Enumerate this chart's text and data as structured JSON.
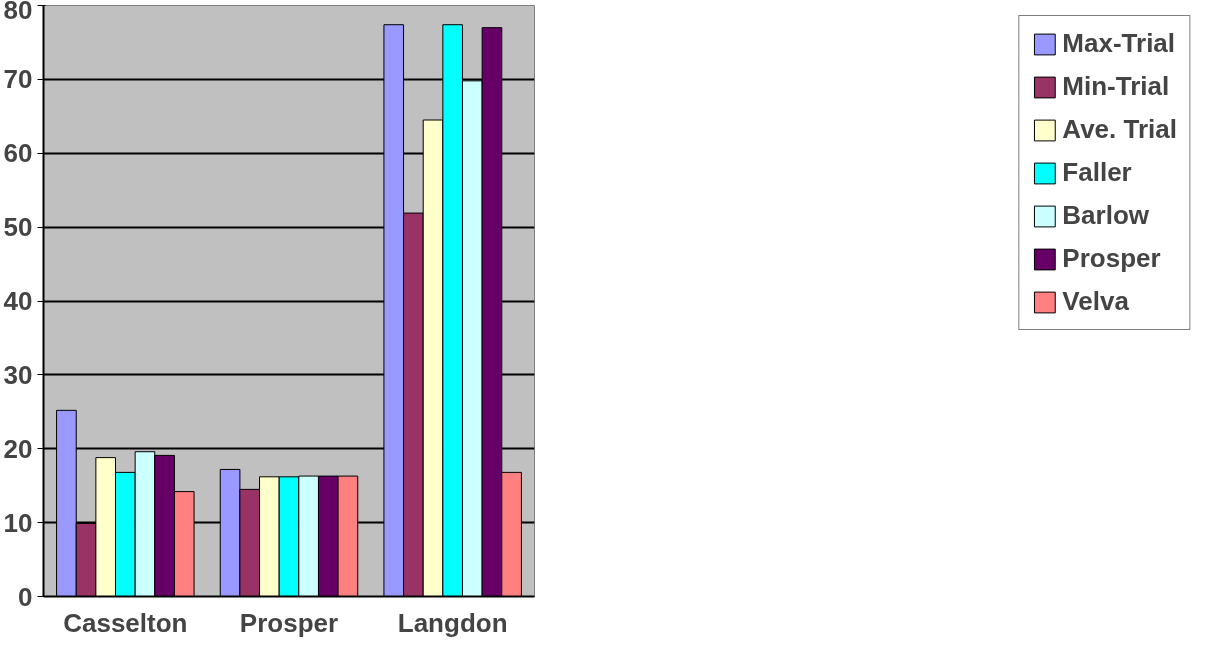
{
  "chart_data": {
    "type": "bar",
    "categories": [
      "Casselton",
      "Prosper",
      "Langdon"
    ],
    "series": [
      {
        "name": "Max-Trial",
        "color": "#9999ff",
        "values": [
          25.2,
          17.2,
          77.4
        ]
      },
      {
        "name": "Min-Trial",
        "color": "#993366",
        "values": [
          9.9,
          14.5,
          51.9
        ]
      },
      {
        "name": "Ave. Trial",
        "color": "#ffffcc",
        "values": [
          18.8,
          16.2,
          64.5
        ]
      },
      {
        "name": "Faller",
        "color": "#00ffff",
        "values": [
          16.8,
          16.2,
          77.4
        ]
      },
      {
        "name": "Barlow",
        "color": "#ccffff",
        "values": [
          19.6,
          16.3,
          69.8
        ]
      },
      {
        "name": "Prosper",
        "color": "#660066",
        "values": [
          19.1,
          16.3,
          77
        ]
      },
      {
        "name": "Velva",
        "color": "#ff8080",
        "values": [
          14.2,
          16.3,
          16.8
        ]
      }
    ],
    "ylim": [
      0,
      80
    ],
    "yticks": [
      0,
      10,
      20,
      30,
      40,
      50,
      60,
      70,
      80
    ],
    "grid": "y",
    "legend": "right"
  }
}
